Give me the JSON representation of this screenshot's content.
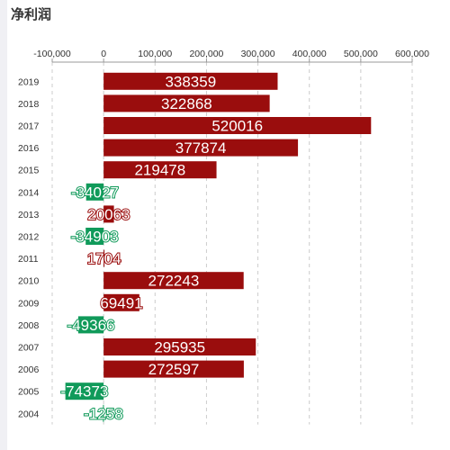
{
  "title": "净利润",
  "colors": {
    "positive": "#9a0d0d",
    "negative": "#109a5a",
    "grid": "#cccccc",
    "axis_text": "#333333"
  },
  "chart_data": {
    "type": "bar",
    "orientation": "horizontal",
    "title": "净利润",
    "xlim": [
      -100000,
      600000
    ],
    "x_ticks": [
      -100000,
      0,
      100000,
      200000,
      300000,
      400000,
      500000,
      600000
    ],
    "x_tick_labels": [
      "-100,000",
      "0",
      "100,000",
      "200,000",
      "300,000",
      "400,000",
      "500,000",
      "600,000"
    ],
    "x_axis_position": "top",
    "grid": true,
    "categories": [
      "2019",
      "2018",
      "2017",
      "2016",
      "2015",
      "2014",
      "2013",
      "2012",
      "2011",
      "2010",
      "2009",
      "2008",
      "2007",
      "2006",
      "2005",
      "2004"
    ],
    "values": [
      338359,
      322868,
      520016,
      377874,
      219478,
      -34027,
      20063,
      -34903,
      1704,
      272243,
      69491,
      -49366,
      295935,
      272597,
      -74373,
      -1258
    ]
  }
}
